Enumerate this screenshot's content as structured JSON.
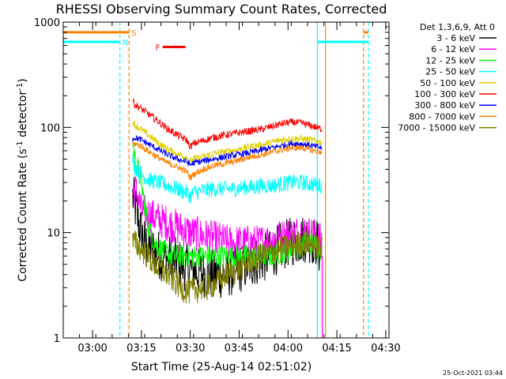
{
  "chart_data": {
    "type": "line",
    "title": "RHESSI Observing Summary Count Rates, Corrected",
    "xlabel": "Start Time (25-Aug-14 02:51:02)",
    "ylabel_parts": [
      "Corrected Count Rate (s",
      "-1",
      " detector",
      "-1",
      ")"
    ],
    "y_scale": "log",
    "ylim": [
      1,
      1000
    ],
    "y_ticks": [
      {
        "value": 1,
        "label": "1"
      },
      {
        "value": 10,
        "label": "10"
      },
      {
        "value": 100,
        "label": "100"
      },
      {
        "value": 1000,
        "label": "1000"
      }
    ],
    "xlim_minutes": [
      0,
      100
    ],
    "x_ticks": [
      {
        "minute": 9,
        "label": "03:00"
      },
      {
        "minute": 24,
        "label": "03:15"
      },
      {
        "minute": 39,
        "label": "03:30"
      },
      {
        "minute": 54,
        "label": "03:45"
      },
      {
        "minute": 69,
        "label": "04:00"
      },
      {
        "minute": 84,
        "label": "04:15"
      },
      {
        "minute": 99,
        "label": "04:30"
      }
    ],
    "legend": {
      "placement": "right",
      "header": "Det 1,3,6,9, Att 0",
      "entries": [
        {
          "label": "3 - 6 keV",
          "color": "#000000"
        },
        {
          "label": "6 - 12 keV",
          "color": "#ff00ff"
        },
        {
          "label": "12 - 25 keV",
          "color": "#00ff00"
        },
        {
          "label": "25 - 50 keV",
          "color": "#00ffff"
        },
        {
          "label": "50 - 100 keV",
          "color": "#e0d000"
        },
        {
          "label": "100 - 300 keV",
          "color": "#ff0000"
        },
        {
          "label": "300 - 800 keV",
          "color": "#0000ff"
        },
        {
          "label": "800 - 7000 keV",
          "color": "#ff8000"
        },
        {
          "label": "7000 - 15000 keV",
          "color": "#808000"
        }
      ]
    },
    "series": [
      {
        "name": "3 - 6 keV",
        "color": "#000000",
        "noise": 0.55,
        "x": [
          21.3,
          22,
          23,
          24,
          25,
          27,
          30,
          33,
          36,
          39,
          42,
          45,
          48,
          51,
          54,
          57,
          60,
          63,
          66,
          69,
          72,
          75,
          78,
          79
        ],
        "y": [
          22,
          18,
          13,
          10,
          8,
          7,
          6,
          5.5,
          5,
          4.5,
          4.2,
          4,
          4,
          4.2,
          4.5,
          5,
          5.5,
          6,
          7,
          8,
          8.5,
          9,
          8,
          6
        ]
      },
      {
        "name": "6 - 12 keV",
        "color": "#ff00ff",
        "noise": 0.4,
        "x": [
          21.3,
          22,
          23,
          24,
          26,
          28,
          30,
          33,
          36,
          39,
          42,
          45,
          48,
          51,
          54,
          57,
          60,
          63,
          66,
          69,
          72,
          75,
          78,
          79.5
        ],
        "y": [
          24,
          26,
          22,
          16,
          15,
          14,
          13,
          12,
          11,
          10,
          9.5,
          9,
          8.5,
          8,
          8,
          8,
          8,
          8.5,
          9,
          9.5,
          10,
          10,
          9,
          8
        ]
      },
      {
        "name": "12 - 25 keV",
        "color": "#00ff00",
        "noise": 0.25,
        "x": [
          21.3,
          22,
          23,
          24,
          25,
          26,
          28,
          31,
          34,
          37,
          40,
          43,
          46,
          49,
          52,
          55,
          58,
          61,
          64,
          67,
          70,
          73,
          76,
          79.5
        ],
        "y": [
          75,
          50,
          40,
          30,
          18,
          12,
          8,
          6.5,
          6,
          6,
          6,
          6,
          6,
          6,
          6,
          6,
          6,
          6,
          6,
          6.5,
          7,
          7.5,
          8,
          7
        ]
      },
      {
        "name": "25 - 50 keV",
        "color": "#00ffff",
        "noise": 0.18,
        "x": [
          21.3,
          22,
          24,
          26,
          29,
          32,
          35,
          38,
          39,
          40,
          43,
          46,
          49,
          52,
          55,
          58,
          61,
          64,
          67,
          70,
          73,
          76,
          79.5
        ],
        "y": [
          50,
          42,
          36,
          32,
          30,
          28,
          26,
          24,
          22,
          24,
          25,
          26,
          26,
          26,
          27,
          27,
          28,
          28,
          29,
          30,
          30,
          29,
          28
        ]
      },
      {
        "name": "50 - 100 keV",
        "color": "#e0d000",
        "noise": 0.08,
        "x": [
          21.3,
          22,
          24,
          26,
          29,
          32,
          35,
          38,
          39,
          40,
          43,
          46,
          49,
          52,
          55,
          58,
          61,
          64,
          67,
          70,
          73,
          76,
          79.5
        ],
        "y": [
          115,
          105,
          95,
          85,
          72,
          62,
          56,
          52,
          47,
          50,
          53,
          56,
          58,
          60,
          63,
          66,
          68,
          72,
          76,
          78,
          78,
          76,
          72
        ]
      },
      {
        "name": "100 - 300 keV",
        "color": "#ff0000",
        "noise": 0.08,
        "x": [
          21.3,
          22,
          24,
          26,
          29,
          32,
          35,
          38,
          39,
          40,
          43,
          46,
          49,
          52,
          55,
          58,
          61,
          64,
          67,
          70,
          73,
          76,
          79.5
        ],
        "y": [
          180,
          165,
          150,
          135,
          115,
          97,
          85,
          75,
          65,
          70,
          75,
          80,
          84,
          87,
          90,
          93,
          96,
          102,
          108,
          112,
          110,
          104,
          96
        ]
      },
      {
        "name": "300 - 800 keV",
        "color": "#0000ff",
        "noise": 0.07,
        "x": [
          21.3,
          22,
          24,
          26,
          29,
          32,
          35,
          38,
          39,
          40,
          43,
          46,
          49,
          52,
          55,
          58,
          61,
          64,
          67,
          70,
          73,
          76,
          79.5
        ],
        "y": [
          78,
          80,
          76,
          70,
          62,
          55,
          50,
          47,
          44,
          46,
          48,
          50,
          52,
          54,
          56,
          58,
          61,
          64,
          67,
          70,
          70,
          67,
          64
        ]
      },
      {
        "name": "800 - 7000 keV",
        "color": "#ff8000",
        "noise": 0.07,
        "x": [
          21.3,
          22,
          24,
          26,
          29,
          32,
          35,
          38,
          39,
          40,
          43,
          46,
          49,
          52,
          55,
          58,
          61,
          64,
          67,
          70,
          73,
          76,
          79.5
        ],
        "y": [
          68,
          70,
          66,
          60,
          52,
          46,
          42,
          38,
          33,
          36,
          40,
          43,
          45,
          47,
          50,
          53,
          55,
          58,
          61,
          64,
          64,
          61,
          58
        ]
      },
      {
        "name": "7000 - 15000 keV",
        "color": "#808000",
        "noise": 0.3,
        "x": [
          21.3,
          22,
          24,
          26,
          28,
          30,
          32,
          34,
          36,
          38,
          40,
          42,
          44,
          46,
          48,
          50,
          52,
          54,
          56,
          58,
          61,
          64,
          67,
          70,
          73,
          76,
          79.5
        ],
        "y": [
          8,
          8,
          7,
          6,
          5,
          4.5,
          4,
          3.5,
          3,
          2.8,
          2.8,
          3,
          3,
          3.2,
          3.5,
          4,
          4.2,
          4.5,
          5,
          5.5,
          6,
          6.5,
          7,
          7.5,
          8,
          8,
          7
        ]
      }
    ],
    "saa_flag": {
      "label": "S",
      "color": "#ff8000",
      "value": 800,
      "segments": [
        [
          0,
          20.2
        ],
        [
          92.2,
          93.7
        ]
      ]
    },
    "night_flag": {
      "label": "N",
      "color": "#00ffff",
      "value": 650,
      "segments": [
        [
          0,
          17.4
        ],
        [
          78,
          93.7
        ]
      ]
    },
    "flare_flag": {
      "label": "F",
      "color": "#ff0000",
      "value": 580,
      "segments": [
        [
          30.5,
          37.5
        ]
      ]
    },
    "vertical_markers": [
      {
        "minute": 17.4,
        "color": "#00ffff"
      },
      {
        "minute": 20.2,
        "color": "#ff8000"
      },
      {
        "minute": 78,
        "color": "#00ffff"
      },
      {
        "minute": 80.5,
        "color": "#ff8000"
      },
      {
        "minute": 92.2,
        "color": "#ff8000"
      },
      {
        "minute": 93.7,
        "color": "#00ffff"
      }
    ],
    "end_spike": {
      "minute": 79.5,
      "color": "#ff00ff",
      "from": 1,
      "to": 6
    },
    "footer": "25-Oct-2021 03:44"
  }
}
